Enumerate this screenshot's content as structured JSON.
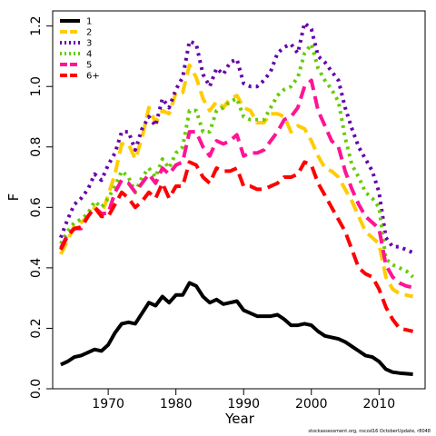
{
  "chart_data": {
    "type": "line",
    "xlabel": "Year",
    "ylabel": "F",
    "xlim": [
      1961.8,
      2016.8
    ],
    "ylim": [
      0.0,
      1.25
    ],
    "xticks": [
      1970,
      1980,
      1990,
      2000,
      2010
    ],
    "yticks": [
      0.0,
      0.2,
      0.4,
      0.6,
      0.8,
      1.0,
      1.2
    ],
    "xtick_labels": [
      "1970",
      "1980",
      "1990",
      "2000",
      "2010"
    ],
    "ytick_labels": [
      "0.0",
      "0.2",
      "0.4",
      "0.6",
      "0.8",
      "1.0",
      "1.2"
    ],
    "grid": false,
    "legend_position": "top-left",
    "x": [
      1963,
      1964,
      1965,
      1966,
      1967,
      1968,
      1969,
      1970,
      1971,
      1972,
      1973,
      1974,
      1975,
      1976,
      1977,
      1978,
      1979,
      1980,
      1981,
      1982,
      1983,
      1984,
      1985,
      1986,
      1987,
      1988,
      1989,
      1990,
      1991,
      1992,
      1993,
      1994,
      1995,
      1996,
      1997,
      1998,
      1999,
      2000,
      2001,
      2002,
      2003,
      2004,
      2005,
      2006,
      2007,
      2008,
      2009,
      2010,
      2011,
      2012,
      2013,
      2014,
      2015
    ],
    "series": [
      {
        "name": "1",
        "color": "#000000",
        "dash": "solid",
        "values": [
          0.08,
          0.09,
          0.105,
          0.11,
          0.12,
          0.13,
          0.125,
          0.145,
          0.185,
          0.215,
          0.22,
          0.215,
          0.25,
          0.285,
          0.275,
          0.305,
          0.285,
          0.31,
          0.31,
          0.35,
          0.34,
          0.305,
          0.285,
          0.295,
          0.28,
          0.285,
          0.29,
          0.26,
          0.25,
          0.24,
          0.24,
          0.24,
          0.245,
          0.23,
          0.21,
          0.21,
          0.215,
          0.21,
          0.19,
          0.175,
          0.17,
          0.165,
          0.155,
          0.14,
          0.125,
          0.11,
          0.105,
          0.09,
          0.065,
          0.055,
          0.052,
          0.05,
          0.048
        ]
      },
      {
        "name": "2",
        "color": "#ffcc00",
        "dash": "long",
        "values": [
          0.445,
          0.49,
          0.54,
          0.55,
          0.57,
          0.6,
          0.575,
          0.64,
          0.71,
          0.81,
          0.81,
          0.76,
          0.83,
          0.93,
          0.88,
          0.92,
          0.91,
          0.98,
          0.98,
          1.07,
          1.03,
          0.96,
          0.92,
          0.95,
          0.93,
          0.96,
          0.97,
          0.93,
          0.92,
          0.88,
          0.88,
          0.91,
          0.91,
          0.9,
          0.85,
          0.87,
          0.86,
          0.82,
          0.77,
          0.73,
          0.72,
          0.7,
          0.66,
          0.62,
          0.57,
          0.52,
          0.5,
          0.48,
          0.37,
          0.33,
          0.315,
          0.31,
          0.305
        ]
      },
      {
        "name": "3",
        "color": "#6600aa",
        "dash": "dotted",
        "values": [
          0.5,
          0.56,
          0.61,
          0.63,
          0.66,
          0.71,
          0.69,
          0.74,
          0.78,
          0.85,
          0.85,
          0.79,
          0.86,
          0.9,
          0.87,
          0.96,
          0.93,
          0.99,
          1.03,
          1.15,
          1.14,
          1.04,
          1.0,
          1.06,
          1.04,
          1.08,
          1.09,
          1.01,
          1.0,
          1.0,
          1.02,
          1.05,
          1.11,
          1.13,
          1.14,
          1.11,
          1.21,
          1.19,
          1.1,
          1.08,
          1.05,
          1.02,
          0.93,
          0.86,
          0.8,
          0.76,
          0.72,
          0.65,
          0.5,
          0.47,
          0.47,
          0.46,
          0.45
        ]
      },
      {
        "name": "4",
        "color": "#66cc00",
        "dash": "dotted",
        "values": [
          0.48,
          0.52,
          0.55,
          0.56,
          0.58,
          0.62,
          0.6,
          0.63,
          0.67,
          0.72,
          0.7,
          0.65,
          0.7,
          0.73,
          0.7,
          0.76,
          0.73,
          0.78,
          0.8,
          0.92,
          0.92,
          0.85,
          0.85,
          0.92,
          0.93,
          0.95,
          0.96,
          0.9,
          0.89,
          0.89,
          0.89,
          0.93,
          0.97,
          0.99,
          1.0,
          1.03,
          1.11,
          1.14,
          1.06,
          1.02,
          0.99,
          0.95,
          0.83,
          0.74,
          0.7,
          0.65,
          0.63,
          0.6,
          0.43,
          0.41,
          0.4,
          0.39,
          0.37
        ]
      },
      {
        "name": "5",
        "color": "#ff1493",
        "dash": "long",
        "values": [
          0.465,
          0.51,
          0.53,
          0.53,
          0.57,
          0.6,
          0.58,
          0.58,
          0.65,
          0.69,
          0.68,
          0.65,
          0.68,
          0.71,
          0.68,
          0.73,
          0.71,
          0.74,
          0.75,
          0.85,
          0.85,
          0.8,
          0.77,
          0.82,
          0.81,
          0.82,
          0.84,
          0.77,
          0.78,
          0.78,
          0.79,
          0.82,
          0.85,
          0.89,
          0.9,
          0.93,
          1.0,
          1.02,
          0.92,
          0.87,
          0.82,
          0.8,
          0.72,
          0.66,
          0.61,
          0.57,
          0.55,
          0.53,
          0.41,
          0.37,
          0.35,
          0.34,
          0.335
        ]
      },
      {
        "name": "6+",
        "color": "#ff0000",
        "dash": "long",
        "values": [
          0.46,
          0.505,
          0.53,
          0.535,
          0.57,
          0.6,
          0.57,
          0.57,
          0.61,
          0.65,
          0.63,
          0.6,
          0.62,
          0.65,
          0.63,
          0.68,
          0.63,
          0.67,
          0.67,
          0.75,
          0.74,
          0.7,
          0.68,
          0.73,
          0.72,
          0.72,
          0.73,
          0.67,
          0.67,
          0.66,
          0.66,
          0.67,
          0.68,
          0.7,
          0.7,
          0.71,
          0.75,
          0.74,
          0.68,
          0.64,
          0.6,
          0.56,
          0.52,
          0.46,
          0.4,
          0.38,
          0.37,
          0.33,
          0.27,
          0.23,
          0.2,
          0.195,
          0.19
        ]
      }
    ],
    "footnote": "stockassessment.org, nscod16 OctoberUpdate, r8048"
  }
}
